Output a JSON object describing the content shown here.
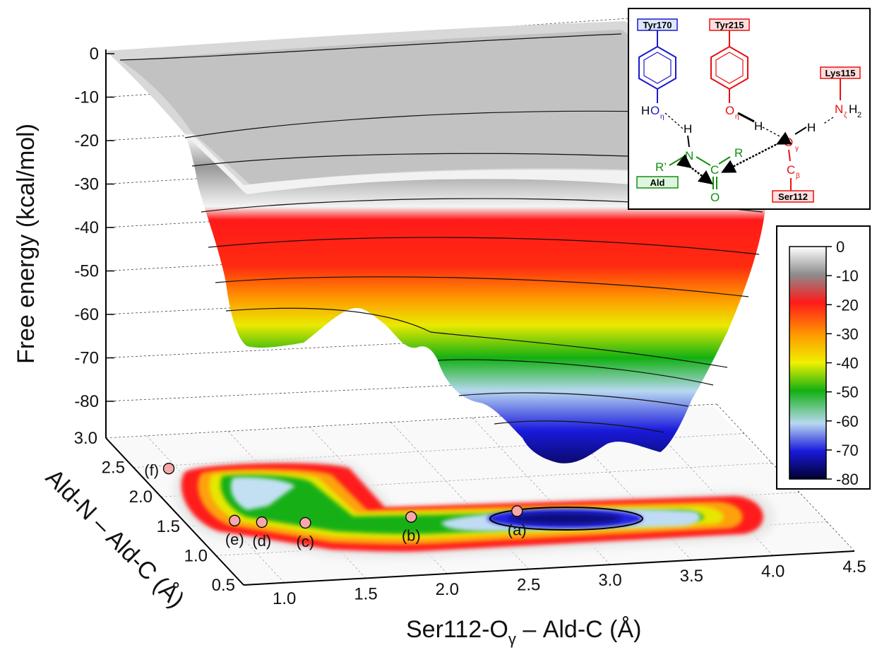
{
  "chart_data": {
    "type": "surface",
    "zlabel": "Free energy (kcal/mol)",
    "xlabel_main": "Ser112-O",
    "xlabel_sub": "γ",
    "xlabel_tail": " – Ald-C (Å)",
    "ylabel": "Ald-N – Ald-C (Å)",
    "z_ticks": [
      "0",
      "-10",
      "-20",
      "-30",
      "-40",
      "-50",
      "-60",
      "-70",
      "-80"
    ],
    "x_ticks": [
      "1.0",
      "1.5",
      "2.0",
      "2.5",
      "3.0",
      "3.5",
      "4.0",
      "4.5"
    ],
    "y_ticks": [
      "0.5",
      "1.0",
      "1.5",
      "2.0",
      "2.5",
      "3.0"
    ],
    "xlim": [
      0.75,
      4.5
    ],
    "ylim": [
      0.5,
      3.0
    ],
    "zlim": [
      -80,
      0
    ],
    "colorbar": {
      "ticks": [
        "0",
        "-10",
        "-20",
        "-30",
        "-40",
        "-50",
        "-60",
        "-70",
        "-80"
      ],
      "colors": [
        "#ffffff",
        "#8c8c8c",
        "#ff1a1a",
        "#ff9a00",
        "#f0f000",
        "#12b012",
        "#b8d8f0",
        "#1a1adc",
        "#000030"
      ]
    },
    "points": [
      {
        "label": "(a)",
        "x": 2.75,
        "y": 1.45,
        "z": -80
      },
      {
        "label": "(b)",
        "x": 2.1,
        "y": 1.45,
        "z": -60
      },
      {
        "label": "(c)",
        "x": 1.45,
        "y": 1.45,
        "z": -55
      },
      {
        "label": "(d)",
        "x": 1.2,
        "y": 1.5,
        "z": -57
      },
      {
        "label": "(e)",
        "x": 1.05,
        "y": 1.55,
        "z": -58
      },
      {
        "label": "(f)",
        "x": 0.95,
        "y": 2.45,
        "z": -65
      }
    ],
    "point_color": "#f5a8a8"
  },
  "inset": {
    "boxes": {
      "tyr170": "Tyr170",
      "tyr215": "Tyr215",
      "lys115": "Lys115",
      "ald": "Ald",
      "ser112": "Ser112"
    },
    "box_colors": {
      "tyr170": "#1a1acc",
      "tyr215": "#e81010",
      "lys115": "#e81010",
      "ald": "#109010",
      "ser112": "#e81010"
    },
    "box_fills": {
      "tyr170": "#dde8ff",
      "tyr215": "#ffdede",
      "lys115": "#ffdede",
      "ald": "#dff5df",
      "ser112": "#ffdede"
    },
    "atoms": {
      "ho_h": "H",
      "ho_o": "O",
      "ho_sub": "η",
      "o215": "O",
      "o215_sub": "η",
      "h215": "H",
      "nz_n": "N",
      "nz_sub": "ζ",
      "nz_h": "H",
      "nz_h_sub": "2",
      "hn": "H",
      "n": "N",
      "rp": "R’",
      "r": "R",
      "c": "C",
      "o": "O",
      "og": "O",
      "og_sub": "γ",
      "hog": "H",
      "cb": "C",
      "cb_sub": "β"
    }
  }
}
